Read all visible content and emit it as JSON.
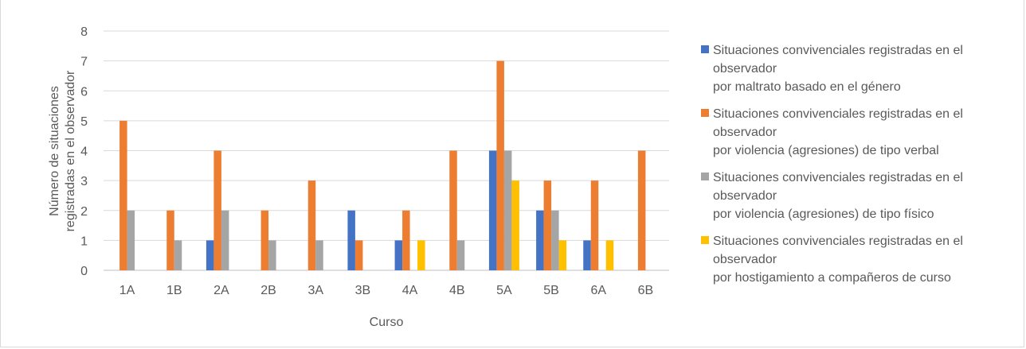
{
  "chart_data": {
    "type": "bar",
    "title": "",
    "xlabel": "Curso",
    "ylabel_lines": [
      "Número de situaciones",
      "registradas en el observador"
    ],
    "ylim": [
      0,
      8
    ],
    "yticks": [
      0,
      1,
      2,
      3,
      4,
      5,
      6,
      7,
      8
    ],
    "grid": true,
    "legend_position": "right",
    "categories": [
      "1A",
      "1B",
      "2A",
      "2B",
      "3A",
      "3B",
      "4A",
      "4B",
      "5A",
      "5B",
      "6A",
      "6B"
    ],
    "series": [
      {
        "name": "Situaciones convivenciales registradas en el observador por maltrato basado en el género",
        "legend_lines": [
          "Situaciones convivenciales registradas en el",
          "observador",
          "por maltrato basado en el género"
        ],
        "color": "#4472c4",
        "values": [
          0,
          0,
          1,
          0,
          0,
          2,
          1,
          0,
          4,
          2,
          1,
          0
        ]
      },
      {
        "name": "Situaciones convivenciales registradas en el observador por violencia (agresiones) de tipo verbal",
        "legend_lines": [
          "Situaciones convivenciales registradas en el",
          "observador",
          "por violencia (agresiones) de tipo verbal"
        ],
        "color": "#ed7d31",
        "values": [
          5,
          2,
          4,
          2,
          3,
          1,
          2,
          4,
          7,
          3,
          3,
          4
        ]
      },
      {
        "name": "Situaciones convivenciales registradas en el observador por violencia (agresiones) de tipo físico",
        "legend_lines": [
          "Situaciones convivenciales registradas en el",
          "observador",
          "por violencia (agresiones) de tipo físico"
        ],
        "color": "#a5a5a5",
        "values": [
          2,
          1,
          2,
          1,
          1,
          0,
          0,
          1,
          4,
          2,
          0,
          0
        ]
      },
      {
        "name": "Situaciones convivenciales registradas en el observador por hostigamiento a compañeros de curso",
        "legend_lines": [
          "Situaciones convivenciales registradas en el",
          "observador",
          "por hostigamiento a compañeros de curso"
        ],
        "color": "#ffc000",
        "values": [
          0,
          0,
          0,
          0,
          0,
          0,
          1,
          0,
          3,
          1,
          1,
          0
        ]
      }
    ]
  }
}
